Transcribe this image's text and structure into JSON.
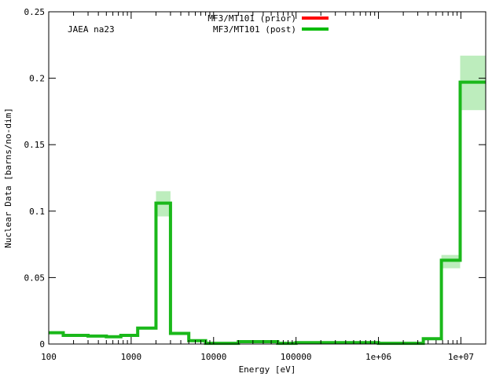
{
  "chart_data": {
    "type": "line",
    "step": true,
    "xlabel": "Energy [eV]",
    "ylabel": "Nuclear Data [barns/no-dim]",
    "annotation": "JAEA na23",
    "x_scale": "log",
    "xlim": [
      100,
      20000000
    ],
    "ylim": [
      0,
      0.25
    ],
    "x_ticks": [
      {
        "value": 100,
        "label": "100"
      },
      {
        "value": 1000,
        "label": "1000"
      },
      {
        "value": 10000,
        "label": "10000"
      },
      {
        "value": 100000,
        "label": "100000"
      },
      {
        "value": 1000000,
        "label": "1e+06"
      },
      {
        "value": 10000000,
        "label": "1e+07"
      }
    ],
    "y_ticks": [
      {
        "value": 0,
        "label": "0"
      },
      {
        "value": 0.05,
        "label": "0.05"
      },
      {
        "value": 0.1,
        "label": "0.1"
      },
      {
        "value": 0.15,
        "label": "0.15"
      },
      {
        "value": 0.2,
        "label": "0.2"
      },
      {
        "value": 0.25,
        "label": "0.25"
      }
    ],
    "legend": {
      "position": "top-center",
      "entries": [
        {
          "label": "MF3/MT101 (prior)",
          "color": "#ff0000"
        },
        {
          "label": "MF3/MT101 (post)",
          "color": "#00bb00"
        }
      ]
    },
    "series": [
      {
        "name": "MF3/MT101 (post)",
        "color": "#1ab81a",
        "band_color": "#bdedbd",
        "bins": [
          {
            "x0": 100,
            "x1": 150,
            "y": 0.0085,
            "lo": 0.0085,
            "hi": 0.0085
          },
          {
            "x0": 150,
            "x1": 300,
            "y": 0.0065,
            "lo": 0.0065,
            "hi": 0.0065
          },
          {
            "x0": 300,
            "x1": 500,
            "y": 0.006,
            "lo": 0.006,
            "hi": 0.006
          },
          {
            "x0": 500,
            "x1": 750,
            "y": 0.0055,
            "lo": 0.0055,
            "hi": 0.0055
          },
          {
            "x0": 750,
            "x1": 1200,
            "y": 0.0065,
            "lo": 0.0065,
            "hi": 0.0065
          },
          {
            "x0": 1200,
            "x1": 2000,
            "y": 0.012,
            "lo": 0.012,
            "hi": 0.012
          },
          {
            "x0": 2000,
            "x1": 3000,
            "y": 0.106,
            "lo": 0.096,
            "hi": 0.115
          },
          {
            "x0": 3000,
            "x1": 5000,
            "y": 0.008,
            "lo": 0.008,
            "hi": 0.008
          },
          {
            "x0": 5000,
            "x1": 8000,
            "y": 0.0025,
            "lo": 0.0025,
            "hi": 0.0025
          },
          {
            "x0": 8000,
            "x1": 20000,
            "y": 0.0005,
            "lo": 0.0005,
            "hi": 0.0005
          },
          {
            "x0": 20000,
            "x1": 60000,
            "y": 0.0018,
            "lo": 0.0018,
            "hi": 0.0018
          },
          {
            "x0": 60000,
            "x1": 100000,
            "y": 0.0005,
            "lo": 0.0005,
            "hi": 0.0005
          },
          {
            "x0": 100000,
            "x1": 1000000,
            "y": 0.001,
            "lo": 0.001,
            "hi": 0.001
          },
          {
            "x0": 1000000,
            "x1": 3500000,
            "y": 0.0005,
            "lo": 0.0005,
            "hi": 0.0005
          },
          {
            "x0": 3500000,
            "x1": 5800000,
            "y": 0.004,
            "lo": 0.004,
            "hi": 0.004
          },
          {
            "x0": 5800000,
            "x1": 9800000,
            "y": 0.063,
            "lo": 0.057,
            "hi": 0.067
          },
          {
            "x0": 9800000,
            "x1": 20000000,
            "y": 0.197,
            "lo": 0.176,
            "hi": 0.217
          }
        ]
      }
    ]
  }
}
